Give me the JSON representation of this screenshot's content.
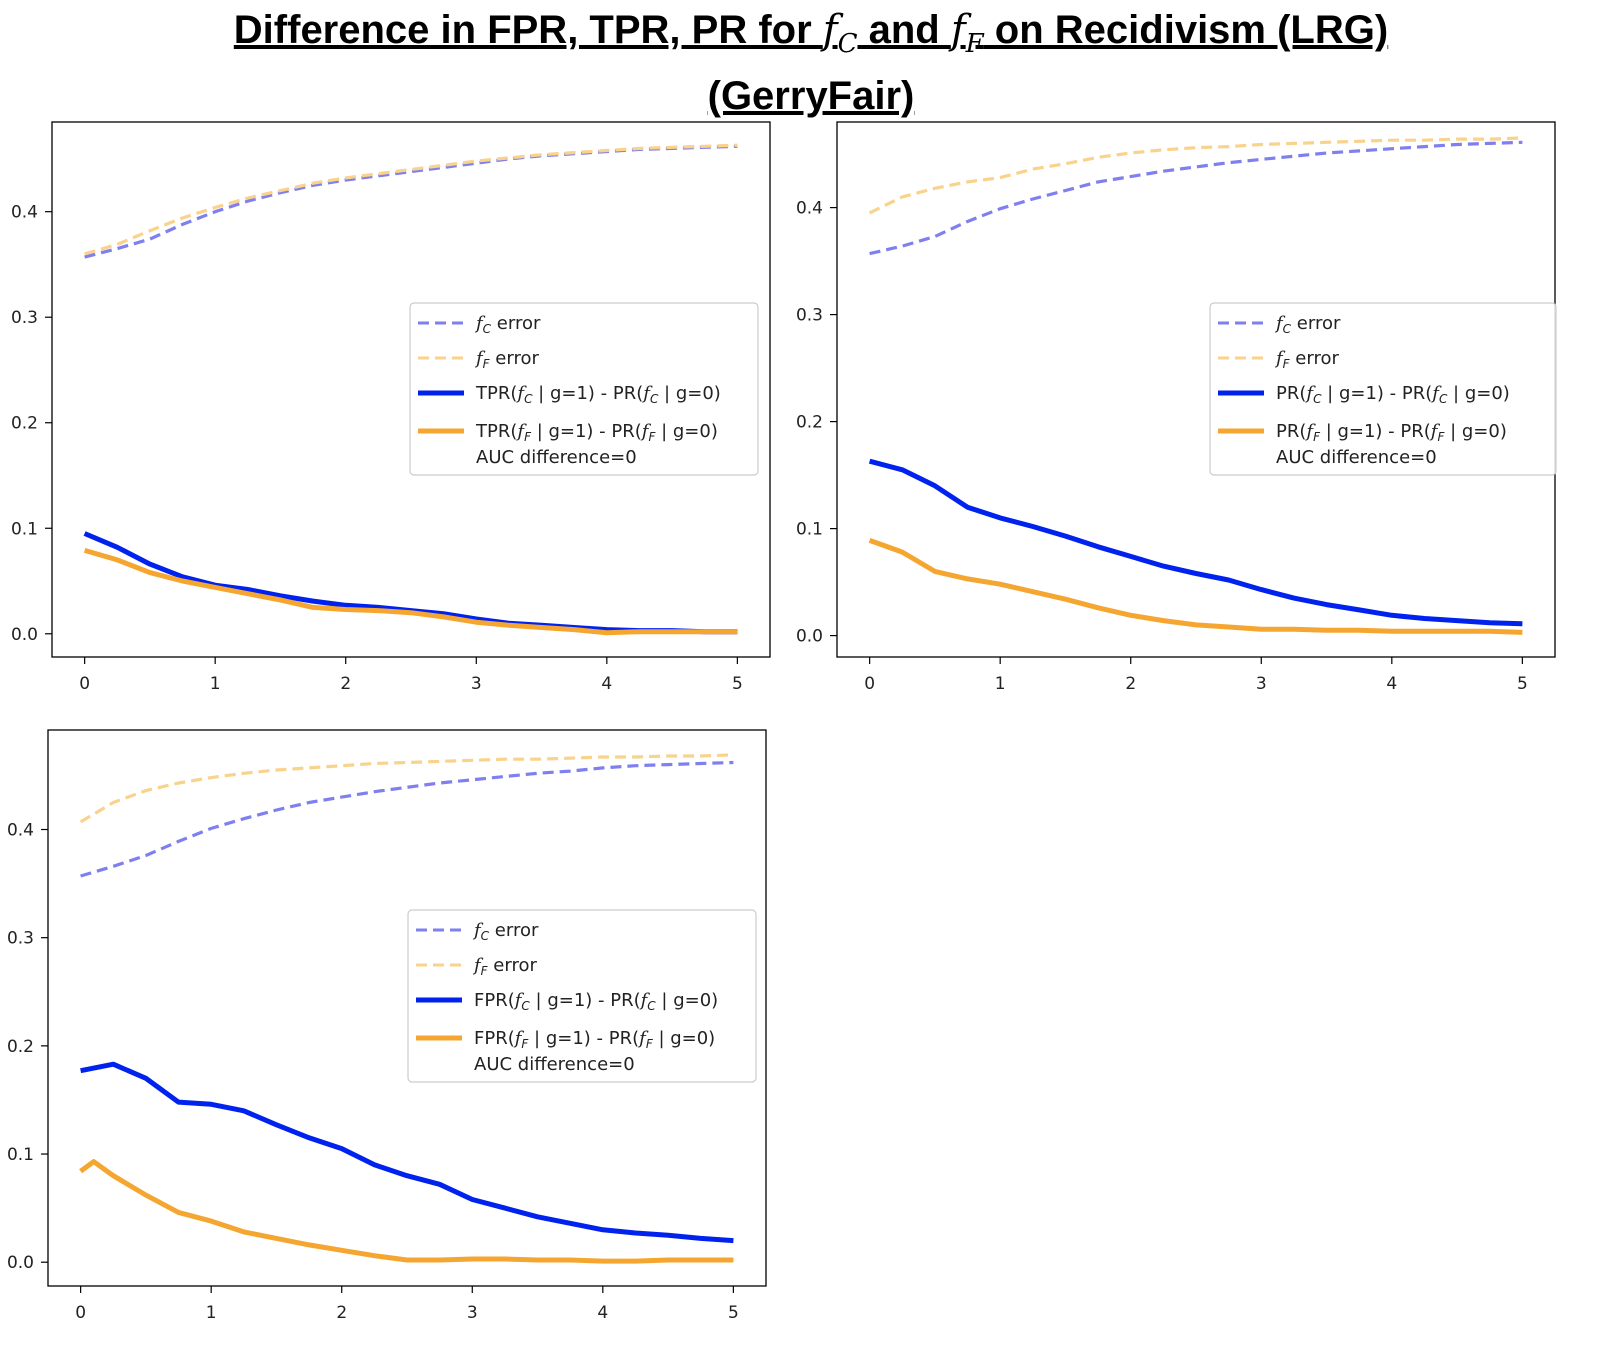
{
  "title": {
    "prefix": "Difference in FPR, TPR, PR for ",
    "f": "f",
    "c_sub": "C",
    "and": " and ",
    "f_sub": "F",
    "suffix": " on Recidivism (LRG)",
    "line2": "(GerryFair)"
  },
  "colors": {
    "blue_solid": "#0022ee",
    "blue_dashed": "#7f7ff0",
    "orange_solid": "#f5a630",
    "orange_dashed": "#f9d28c"
  },
  "chart_data": [
    {
      "type": "line",
      "panel": "top-left",
      "xlim": [
        -0.25,
        5.25
      ],
      "ylim": [
        -0.022,
        0.485
      ],
      "xticks": [
        0,
        1,
        2,
        3,
        4,
        5
      ],
      "yticks": [
        0.0,
        0.1,
        0.2,
        0.3,
        0.4
      ],
      "ytick_labels": [
        "0.0",
        "0.1",
        "0.2",
        "0.3",
        "0.4"
      ],
      "legend_position": "center-right",
      "legend_note": "AUC difference=0",
      "series": [
        {
          "name": "fC error",
          "style": "dashed",
          "color": "blue_dashed",
          "legend_text": " error",
          "legend_sub": "C",
          "legend_kind": "error",
          "x": [
            0,
            0.25,
            0.5,
            0.75,
            1.0,
            1.25,
            1.5,
            1.75,
            2.0,
            2.25,
            2.5,
            2.75,
            3.0,
            3.25,
            3.5,
            3.75,
            4.0,
            4.25,
            4.5,
            4.75,
            5.0
          ],
          "y": [
            0.357,
            0.365,
            0.374,
            0.388,
            0.4,
            0.41,
            0.418,
            0.425,
            0.43,
            0.434,
            0.438,
            0.442,
            0.446,
            0.45,
            0.453,
            0.455,
            0.457,
            0.459,
            0.46,
            0.461,
            0.462
          ]
        },
        {
          "name": "fF error",
          "style": "dashed",
          "color": "orange_dashed",
          "legend_text": " error",
          "legend_sub": "F",
          "legend_kind": "error",
          "x": [
            0,
            0.25,
            0.5,
            0.75,
            1.0,
            1.25,
            1.5,
            1.75,
            2.0,
            2.25,
            2.5,
            2.75,
            3.0,
            3.25,
            3.5,
            3.75,
            4.0,
            4.25,
            4.5,
            4.75,
            5.0
          ],
          "y": [
            0.36,
            0.369,
            0.382,
            0.394,
            0.404,
            0.413,
            0.42,
            0.427,
            0.432,
            0.436,
            0.44,
            0.444,
            0.448,
            0.451,
            0.454,
            0.456,
            0.458,
            0.46,
            0.461,
            0.462,
            0.463
          ]
        },
        {
          "name": "TPR(fC | g=1) - PR(fC | g=0)",
          "style": "solid",
          "color": "blue_solid",
          "legend_pre": "TPR(",
          "legend_sub": "C",
          "legend_mid": " | g=1) - PR(",
          "legend_end": " | g=0)",
          "legend_kind": "metric",
          "x": [
            0,
            0.25,
            0.5,
            0.75,
            1.0,
            1.25,
            1.5,
            1.75,
            2.0,
            2.25,
            2.5,
            2.75,
            3.0,
            3.25,
            3.5,
            3.75,
            4.0,
            4.25,
            4.5,
            4.75,
            5.0
          ],
          "y": [
            0.095,
            0.082,
            0.066,
            0.054,
            0.046,
            0.042,
            0.036,
            0.031,
            0.027,
            0.025,
            0.022,
            0.019,
            0.014,
            0.01,
            0.008,
            0.006,
            0.004,
            0.003,
            0.003,
            0.002,
            0.002
          ]
        },
        {
          "name": "TPR(fF | g=1) - PR(fF | g=0)",
          "style": "solid",
          "color": "orange_solid",
          "legend_pre": "TPR(",
          "legend_sub": "F",
          "legend_mid": " | g=1) - PR(",
          "legend_end": " | g=0)",
          "legend_kind": "metric",
          "x": [
            0,
            0.25,
            0.5,
            0.75,
            1.0,
            1.25,
            1.5,
            1.75,
            2.0,
            2.25,
            2.5,
            2.75,
            3.0,
            3.25,
            3.5,
            3.75,
            4.0,
            4.25,
            4.5,
            4.75,
            5.0
          ],
          "y": [
            0.079,
            0.07,
            0.058,
            0.05,
            0.044,
            0.038,
            0.032,
            0.025,
            0.023,
            0.022,
            0.02,
            0.016,
            0.011,
            0.008,
            0.006,
            0.004,
            0.001,
            0.002,
            0.002,
            0.002,
            0.002
          ]
        }
      ]
    },
    {
      "type": "line",
      "panel": "top-right",
      "xlim": [
        -0.25,
        5.25
      ],
      "ylim": [
        -0.02,
        0.48
      ],
      "xticks": [
        0,
        1,
        2,
        3,
        4,
        5
      ],
      "yticks": [
        0.0,
        0.1,
        0.2,
        0.3,
        0.4
      ],
      "ytick_labels": [
        "0.0",
        "0.1",
        "0.2",
        "0.3",
        "0.4"
      ],
      "legend_position": "center-right",
      "legend_note": "AUC difference=0",
      "series": [
        {
          "name": "fC error",
          "style": "dashed",
          "color": "blue_dashed",
          "legend_text": " error",
          "legend_sub": "C",
          "legend_kind": "error",
          "x": [
            0,
            0.25,
            0.5,
            0.75,
            1.0,
            1.25,
            1.5,
            1.75,
            2.0,
            2.25,
            2.5,
            2.75,
            3.0,
            3.25,
            3.5,
            3.75,
            4.0,
            4.25,
            4.5,
            4.75,
            5.0
          ],
          "y": [
            0.357,
            0.364,
            0.373,
            0.387,
            0.399,
            0.408,
            0.416,
            0.424,
            0.429,
            0.434,
            0.438,
            0.442,
            0.445,
            0.448,
            0.451,
            0.453,
            0.455,
            0.457,
            0.459,
            0.46,
            0.461
          ]
        },
        {
          "name": "fF error",
          "style": "dashed",
          "color": "orange_dashed",
          "legend_text": " error",
          "legend_sub": "F",
          "legend_kind": "error",
          "x": [
            0,
            0.25,
            0.5,
            0.75,
            1.0,
            1.25,
            1.5,
            1.75,
            2.0,
            2.25,
            2.5,
            2.75,
            3.0,
            3.25,
            3.5,
            3.75,
            4.0,
            4.25,
            4.5,
            4.75,
            5.0
          ],
          "y": [
            0.395,
            0.41,
            0.418,
            0.424,
            0.428,
            0.436,
            0.441,
            0.447,
            0.451,
            0.454,
            0.456,
            0.457,
            0.459,
            0.46,
            0.461,
            0.462,
            0.463,
            0.463,
            0.464,
            0.464,
            0.465
          ]
        },
        {
          "name": "PR(fC | g=1) - PR(fC | g=0)",
          "style": "solid",
          "color": "blue_solid",
          "legend_pre": "PR(",
          "legend_sub": "C",
          "legend_mid": " | g=1) - PR(",
          "legend_end": " | g=0)",
          "legend_kind": "metric",
          "x": [
            0,
            0.25,
            0.5,
            0.75,
            1.0,
            1.25,
            1.5,
            1.75,
            2.0,
            2.25,
            2.5,
            2.75,
            3.0,
            3.25,
            3.5,
            3.75,
            4.0,
            4.25,
            4.5,
            4.75,
            5.0
          ],
          "y": [
            0.163,
            0.155,
            0.14,
            0.12,
            0.11,
            0.102,
            0.093,
            0.083,
            0.074,
            0.065,
            0.058,
            0.052,
            0.043,
            0.035,
            0.029,
            0.024,
            0.019,
            0.016,
            0.014,
            0.012,
            0.011
          ]
        },
        {
          "name": "PR(fF | g=1) - PR(fF | g=0)",
          "style": "solid",
          "color": "orange_solid",
          "legend_pre": "PR(",
          "legend_sub": "F",
          "legend_mid": " | g=1) - PR(",
          "legend_end": " | g=0)",
          "legend_kind": "metric",
          "x": [
            0,
            0.25,
            0.5,
            0.75,
            1.0,
            1.25,
            1.5,
            1.75,
            2.0,
            2.25,
            2.5,
            2.75,
            3.0,
            3.25,
            3.5,
            3.75,
            4.0,
            4.25,
            4.5,
            4.75,
            5.0
          ],
          "y": [
            0.089,
            0.078,
            0.06,
            0.053,
            0.048,
            0.041,
            0.034,
            0.026,
            0.019,
            0.014,
            0.01,
            0.008,
            0.006,
            0.006,
            0.005,
            0.005,
            0.004,
            0.004,
            0.004,
            0.004,
            0.003
          ]
        }
      ]
    },
    {
      "type": "line",
      "panel": "bottom-left",
      "xlim": [
        -0.25,
        5.25
      ],
      "ylim": [
        -0.022,
        0.492
      ],
      "xticks": [
        0,
        1,
        2,
        3,
        4,
        5
      ],
      "yticks": [
        0.0,
        0.1,
        0.2,
        0.3,
        0.4
      ],
      "ytick_labels": [
        "0.0",
        "0.1",
        "0.2",
        "0.3",
        "0.4"
      ],
      "legend_position": "center-right",
      "legend_note": "AUC difference=0",
      "series": [
        {
          "name": "fC error",
          "style": "dashed",
          "color": "blue_dashed",
          "legend_text": " error",
          "legend_sub": "C",
          "legend_kind": "error",
          "x": [
            0,
            0.25,
            0.5,
            0.75,
            1.0,
            1.25,
            1.5,
            1.75,
            2.0,
            2.25,
            2.5,
            2.75,
            3.0,
            3.25,
            3.5,
            3.75,
            4.0,
            4.25,
            4.5,
            4.75,
            5.0
          ],
          "y": [
            0.357,
            0.366,
            0.376,
            0.389,
            0.401,
            0.41,
            0.418,
            0.425,
            0.43,
            0.435,
            0.439,
            0.443,
            0.446,
            0.449,
            0.452,
            0.454,
            0.457,
            0.459,
            0.46,
            0.461,
            0.462
          ]
        },
        {
          "name": "fF error",
          "style": "dashed",
          "color": "orange_dashed",
          "legend_text": " error",
          "legend_sub": "F",
          "legend_kind": "error",
          "x": [
            0,
            0.25,
            0.5,
            0.75,
            1.0,
            1.25,
            1.5,
            1.75,
            2.0,
            2.25,
            2.5,
            2.75,
            3.0,
            3.25,
            3.5,
            3.75,
            4.0,
            4.25,
            4.5,
            4.75,
            5.0
          ],
          "y": [
            0.407,
            0.425,
            0.436,
            0.443,
            0.448,
            0.452,
            0.455,
            0.457,
            0.459,
            0.461,
            0.462,
            0.463,
            0.464,
            0.465,
            0.465,
            0.466,
            0.467,
            0.467,
            0.468,
            0.468,
            0.469
          ]
        },
        {
          "name": "FPR(fC | g=1) - PR(fC | g=0)",
          "style": "solid",
          "color": "blue_solid",
          "legend_pre": "FPR(",
          "legend_sub": "C",
          "legend_mid": " | g=1) - PR(",
          "legend_end": " | g=0)",
          "legend_kind": "metric",
          "x": [
            0,
            0.25,
            0.5,
            0.75,
            1.0,
            1.25,
            1.5,
            1.75,
            2.0,
            2.25,
            2.5,
            2.75,
            3.0,
            3.25,
            3.5,
            3.75,
            4.0,
            4.25,
            4.5,
            4.75,
            5.0
          ],
          "y": [
            0.177,
            0.183,
            0.17,
            0.148,
            0.146,
            0.14,
            0.127,
            0.115,
            0.105,
            0.09,
            0.08,
            0.072,
            0.058,
            0.05,
            0.042,
            0.036,
            0.03,
            0.027,
            0.025,
            0.022,
            0.02
          ]
        },
        {
          "name": "FPR(fF | g=1) - PR(fF | g=0)",
          "style": "solid",
          "color": "orange_solid",
          "legend_pre": "FPR(",
          "legend_sub": "F",
          "legend_mid": " | g=1) - PR(",
          "legend_end": " | g=0)",
          "legend_kind": "metric",
          "x": [
            0,
            0.1,
            0.25,
            0.5,
            0.75,
            1.0,
            1.25,
            1.5,
            1.75,
            2.0,
            2.25,
            2.5,
            2.75,
            3.0,
            3.25,
            3.5,
            3.75,
            4.0,
            4.25,
            4.5,
            4.75,
            5.0
          ],
          "y": [
            0.084,
            0.093,
            0.08,
            0.062,
            0.046,
            0.038,
            0.028,
            0.022,
            0.016,
            0.011,
            0.006,
            0.002,
            0.002,
            0.003,
            0.003,
            0.002,
            0.002,
            0.001,
            0.001,
            0.002,
            0.002,
            0.002
          ]
        }
      ]
    }
  ]
}
